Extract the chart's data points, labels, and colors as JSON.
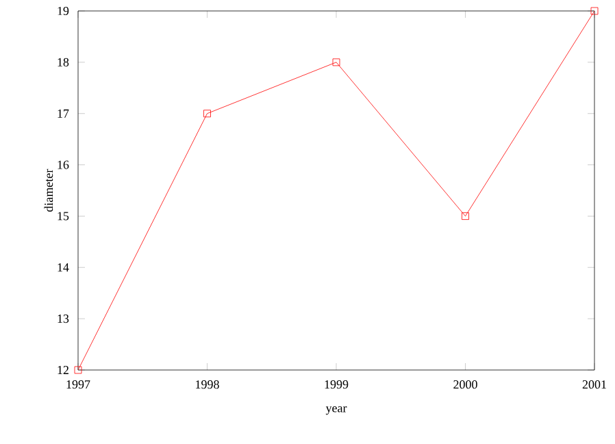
{
  "chart_data": {
    "type": "line",
    "xlabel": "year",
    "ylabel": "diameter",
    "x": [
      1997,
      1998,
      1999,
      2000,
      2001
    ],
    "series": [
      {
        "color": "#ff0000",
        "values": [
          12,
          17,
          18,
          15,
          19
        ]
      }
    ],
    "xlim": [
      1997,
      2001
    ],
    "ylim": [
      12,
      19
    ],
    "xticks": [
      1997,
      1998,
      1999,
      2000,
      2001
    ],
    "yticks": [
      12,
      13,
      14,
      15,
      16,
      17,
      18,
      19
    ],
    "grid": false,
    "marker": "square",
    "line_style": "solid"
  }
}
